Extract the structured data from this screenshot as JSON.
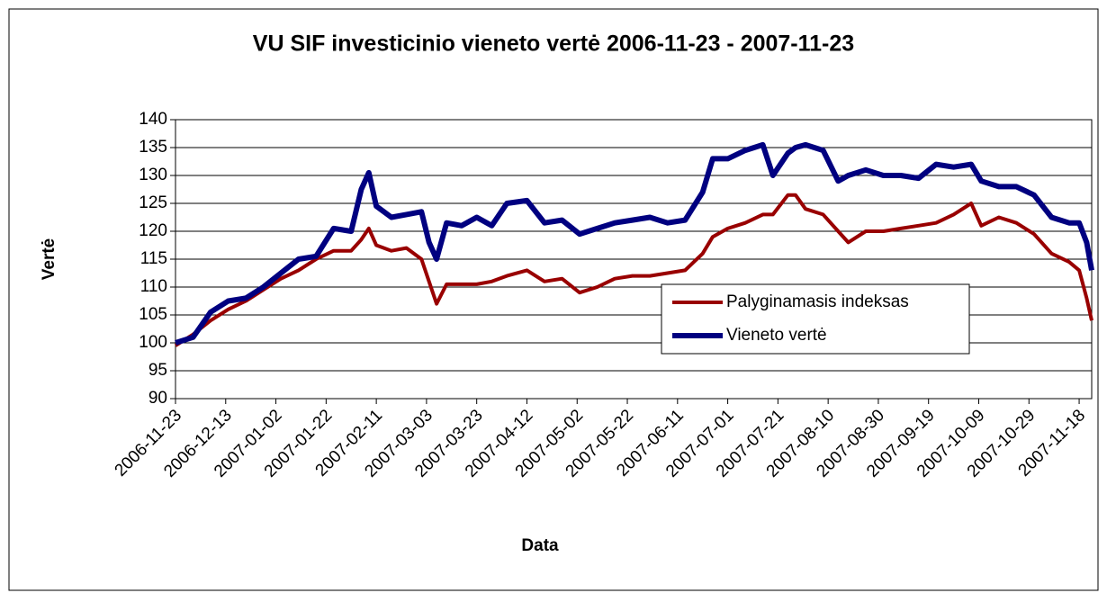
{
  "chart_data": {
    "type": "line",
    "title": "VU SIF investicinio vieneto vertė 2006-11-23 - 2007-11-23",
    "x_label": "Data",
    "y_label": "Vertė",
    "x": [
      "2006-11-23",
      "2006-11-30",
      "2006-12-07",
      "2006-12-14",
      "2006-12-21",
      "2006-12-28",
      "2007-01-04",
      "2007-01-11",
      "2007-01-18",
      "2007-01-25",
      "2007-02-01",
      "2007-02-05",
      "2007-02-08",
      "2007-02-11",
      "2007-02-17",
      "2007-02-23",
      "2007-03-01",
      "2007-03-04",
      "2007-03-07",
      "2007-03-11",
      "2007-03-17",
      "2007-03-23",
      "2007-03-29",
      "2007-04-04",
      "2007-04-12",
      "2007-04-19",
      "2007-04-26",
      "2007-05-03",
      "2007-05-10",
      "2007-05-17",
      "2007-05-24",
      "2007-05-31",
      "2007-06-07",
      "2007-06-14",
      "2007-06-21",
      "2007-06-25",
      "2007-07-01",
      "2007-07-08",
      "2007-07-15",
      "2007-07-19",
      "2007-07-25",
      "2007-07-28",
      "2007-08-01",
      "2007-08-08",
      "2007-08-14",
      "2007-08-18",
      "2007-08-25",
      "2007-09-01",
      "2007-09-08",
      "2007-09-15",
      "2007-09-22",
      "2007-09-29",
      "2007-10-06",
      "2007-10-10",
      "2007-10-17",
      "2007-10-24",
      "2007-10-31",
      "2007-11-07",
      "2007-11-14",
      "2007-11-18",
      "2007-11-21",
      "2007-11-23"
    ],
    "series": [
      {
        "name": "Palyginamasis indeksas",
        "color": "#990000",
        "values": [
          99.5,
          101.5,
          104,
          106,
          107.5,
          109.5,
          111.5,
          113,
          115,
          116.5,
          116.5,
          118.5,
          120.5,
          117.5,
          116.5,
          117,
          115,
          111,
          107,
          110.5,
          110.5,
          110.5,
          111,
          112,
          113,
          111,
          111.5,
          109,
          110,
          111.5,
          112,
          112,
          112.5,
          113,
          116,
          119,
          120.5,
          121.5,
          123,
          123,
          126.5,
          126.5,
          124,
          123,
          120,
          118,
          120,
          120,
          120.5,
          121,
          121.5,
          123,
          125,
          121,
          122.5,
          121.5,
          119.5,
          116,
          114.5,
          113,
          108,
          104
        ]
      },
      {
        "name": "Vieneto vertė",
        "color": "#000080",
        "values": [
          100,
          101,
          105.5,
          107.5,
          108,
          110,
          112.5,
          115,
          115.5,
          120.5,
          120,
          127.5,
          130.5,
          124.5,
          122.5,
          123,
          123.5,
          118,
          115,
          121.5,
          121,
          122.5,
          121,
          125,
          125.5,
          121.5,
          122,
          119.5,
          120.5,
          121.5,
          122,
          122.5,
          121.5,
          122,
          127,
          133,
          133,
          134.5,
          135.5,
          130,
          134,
          135,
          135.5,
          134.5,
          129,
          130,
          131,
          130,
          130,
          129.5,
          132,
          131.5,
          132,
          129,
          128,
          128,
          126.5,
          122.5,
          121.5,
          121.5,
          118,
          113
        ]
      }
    ],
    "xlim": [
      "2006-11-23",
      "2007-11-23"
    ],
    "xticks": [
      "2006-11-23",
      "2006-12-13",
      "2007-01-02",
      "2007-01-22",
      "2007-02-11",
      "2007-03-03",
      "2007-03-23",
      "2007-04-12",
      "2007-05-02",
      "2007-05-22",
      "2007-06-11",
      "2007-07-01",
      "2007-07-21",
      "2007-08-10",
      "2007-08-30",
      "2007-09-19",
      "2007-10-09",
      "2007-10-29",
      "2007-11-18"
    ],
    "ylim": [
      90,
      140
    ],
    "yticks": [
      90,
      95,
      100,
      105,
      110,
      115,
      120,
      125,
      130,
      135,
      140
    ],
    "grid": true,
    "legend": "right"
  }
}
